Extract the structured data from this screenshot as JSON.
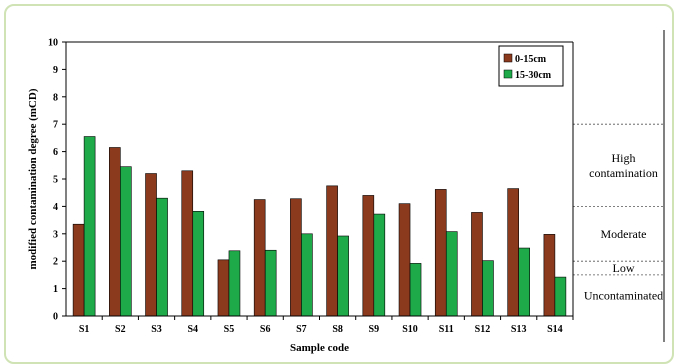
{
  "chart_data": {
    "type": "bar",
    "xlabel": "Sample code",
    "ylabel": "modified contamination degree (mCD)",
    "ylim": [
      0,
      10
    ],
    "yticks": [
      "0",
      "1",
      "2",
      "3",
      "4",
      "5",
      "6",
      "7",
      "8",
      "9",
      "10"
    ],
    "grid": false,
    "legend_position": "top-right",
    "categories": [
      "S1",
      "S2",
      "S3",
      "S4",
      "S5",
      "S6",
      "S7",
      "S8",
      "S9",
      "S10",
      "S11",
      "S12",
      "S13",
      "S14"
    ],
    "series": [
      {
        "name": "0-15cm",
        "color": "#8b3a1e",
        "values": [
          3.35,
          6.15,
          5.2,
          5.3,
          2.05,
          4.25,
          4.28,
          4.75,
          4.4,
          4.1,
          4.62,
          3.78,
          4.65,
          2.98
        ]
      },
      {
        "name": "15-30cm",
        "color": "#1faa4a",
        "values": [
          6.55,
          5.45,
          4.3,
          3.82,
          2.38,
          2.4,
          3.0,
          2.92,
          3.72,
          1.92,
          3.08,
          2.02,
          2.48,
          1.42
        ]
      }
    ],
    "zones": [
      {
        "label_lines": [
          "High",
          "contamination"
        ],
        "from": 4,
        "to": 7
      },
      {
        "label_lines": [
          "Moderate"
        ],
        "from": 2,
        "to": 4
      },
      {
        "label_lines": [
          "Low"
        ],
        "from": 1.5,
        "to": 2
      },
      {
        "label_lines": [
          "Uncontaminated"
        ],
        "from": 0,
        "to": 1.5
      }
    ],
    "zone_boundaries": [
      7,
      4,
      2,
      1.5
    ]
  }
}
